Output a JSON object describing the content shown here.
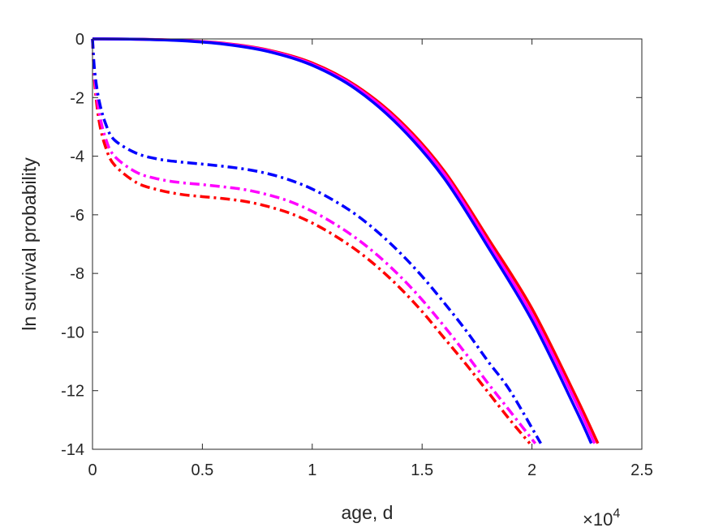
{
  "chart_data": {
    "type": "line",
    "xlabel": "age, d",
    "ylabel": "ln survival probability",
    "x_multiplier": {
      "base": "×10",
      "exponent": "4"
    },
    "xlim": [
      0,
      25000
    ],
    "ylim": [
      -14,
      0
    ],
    "xticks": [
      0,
      5000,
      10000,
      15000,
      20000,
      25000
    ],
    "xtick_labels": [
      "0",
      "0.5",
      "1",
      "1.5",
      "2",
      "2.5"
    ],
    "yticks": [
      0,
      -2,
      -4,
      -6,
      -8,
      -10,
      -12,
      -14
    ],
    "ytick_labels": [
      "0",
      "-2",
      "-4",
      "-6",
      "-8",
      "-10",
      "-12",
      "-14"
    ],
    "grid": false,
    "series": [
      {
        "color": "#ff0000",
        "style": "solid",
        "x": [
          0,
          2000,
          4000,
          6000,
          8000,
          10000,
          12000,
          14000,
          16000,
          18000,
          20000,
          22000,
          23000
        ],
        "y": [
          0,
          -0.01,
          -0.05,
          -0.15,
          -0.38,
          -0.82,
          -1.6,
          -2.8,
          -4.5,
          -6.8,
          -9.2,
          -12.2,
          -13.8
        ]
      },
      {
        "color": "#ff00ff",
        "style": "solid",
        "x": [
          0,
          2000,
          4000,
          6000,
          8000,
          10000,
          12000,
          14000,
          16000,
          18000,
          20000,
          22000,
          22850
        ],
        "y": [
          0,
          -0.01,
          -0.05,
          -0.16,
          -0.4,
          -0.86,
          -1.65,
          -2.88,
          -4.6,
          -6.95,
          -9.4,
          -12.4,
          -13.8
        ]
      },
      {
        "color": "#0000ff",
        "style": "solid",
        "x": [
          0,
          2000,
          4000,
          6000,
          8000,
          10000,
          12000,
          14000,
          16000,
          18000,
          20000,
          22000,
          22700
        ],
        "y": [
          0,
          -0.01,
          -0.06,
          -0.18,
          -0.43,
          -0.9,
          -1.72,
          -3.0,
          -4.75,
          -7.1,
          -9.6,
          -12.65,
          -13.8
        ]
      },
      {
        "color": "#ff0000",
        "style": "dashdot",
        "x": [
          0,
          100,
          300,
          600,
          1000,
          2000,
          3000,
          4000,
          5000,
          6000,
          7000,
          8000,
          9000,
          10000,
          11000,
          12000,
          13000,
          14000,
          15000,
          16000,
          17000,
          18000,
          19000,
          19900
        ],
        "y": [
          0,
          -1.5,
          -2.8,
          -3.7,
          -4.3,
          -4.9,
          -5.15,
          -5.3,
          -5.38,
          -5.45,
          -5.55,
          -5.72,
          -5.95,
          -6.28,
          -6.7,
          -7.2,
          -7.8,
          -8.5,
          -9.3,
          -10.2,
          -11.1,
          -12.05,
          -13.0,
          -13.8
        ]
      },
      {
        "color": "#ff00ff",
        "style": "dashdot",
        "x": [
          0,
          100,
          300,
          600,
          1000,
          2000,
          3000,
          4000,
          5000,
          6000,
          7000,
          8000,
          9000,
          10000,
          11000,
          12000,
          13000,
          14000,
          15000,
          16000,
          17000,
          18000,
          19000,
          20150
        ],
        "y": [
          0,
          -1.3,
          -2.5,
          -3.4,
          -4.0,
          -4.55,
          -4.78,
          -4.9,
          -4.97,
          -5.05,
          -5.15,
          -5.32,
          -5.55,
          -5.88,
          -6.3,
          -6.8,
          -7.4,
          -8.1,
          -8.9,
          -9.8,
          -10.75,
          -11.75,
          -12.7,
          -13.8
        ]
      },
      {
        "color": "#0000ff",
        "style": "dashdot",
        "x": [
          0,
          100,
          300,
          600,
          1000,
          2000,
          3000,
          4000,
          5000,
          6000,
          7000,
          8000,
          9000,
          10000,
          11000,
          12000,
          13000,
          14000,
          15000,
          16000,
          17000,
          18000,
          19000,
          20400
        ],
        "y": [
          0,
          -1.1,
          -2.1,
          -2.9,
          -3.45,
          -3.9,
          -4.1,
          -4.2,
          -4.27,
          -4.35,
          -4.45,
          -4.6,
          -4.82,
          -5.12,
          -5.52,
          -6.0,
          -6.6,
          -7.3,
          -8.1,
          -9.0,
          -9.95,
          -11.0,
          -12.0,
          -13.8
        ]
      }
    ]
  }
}
